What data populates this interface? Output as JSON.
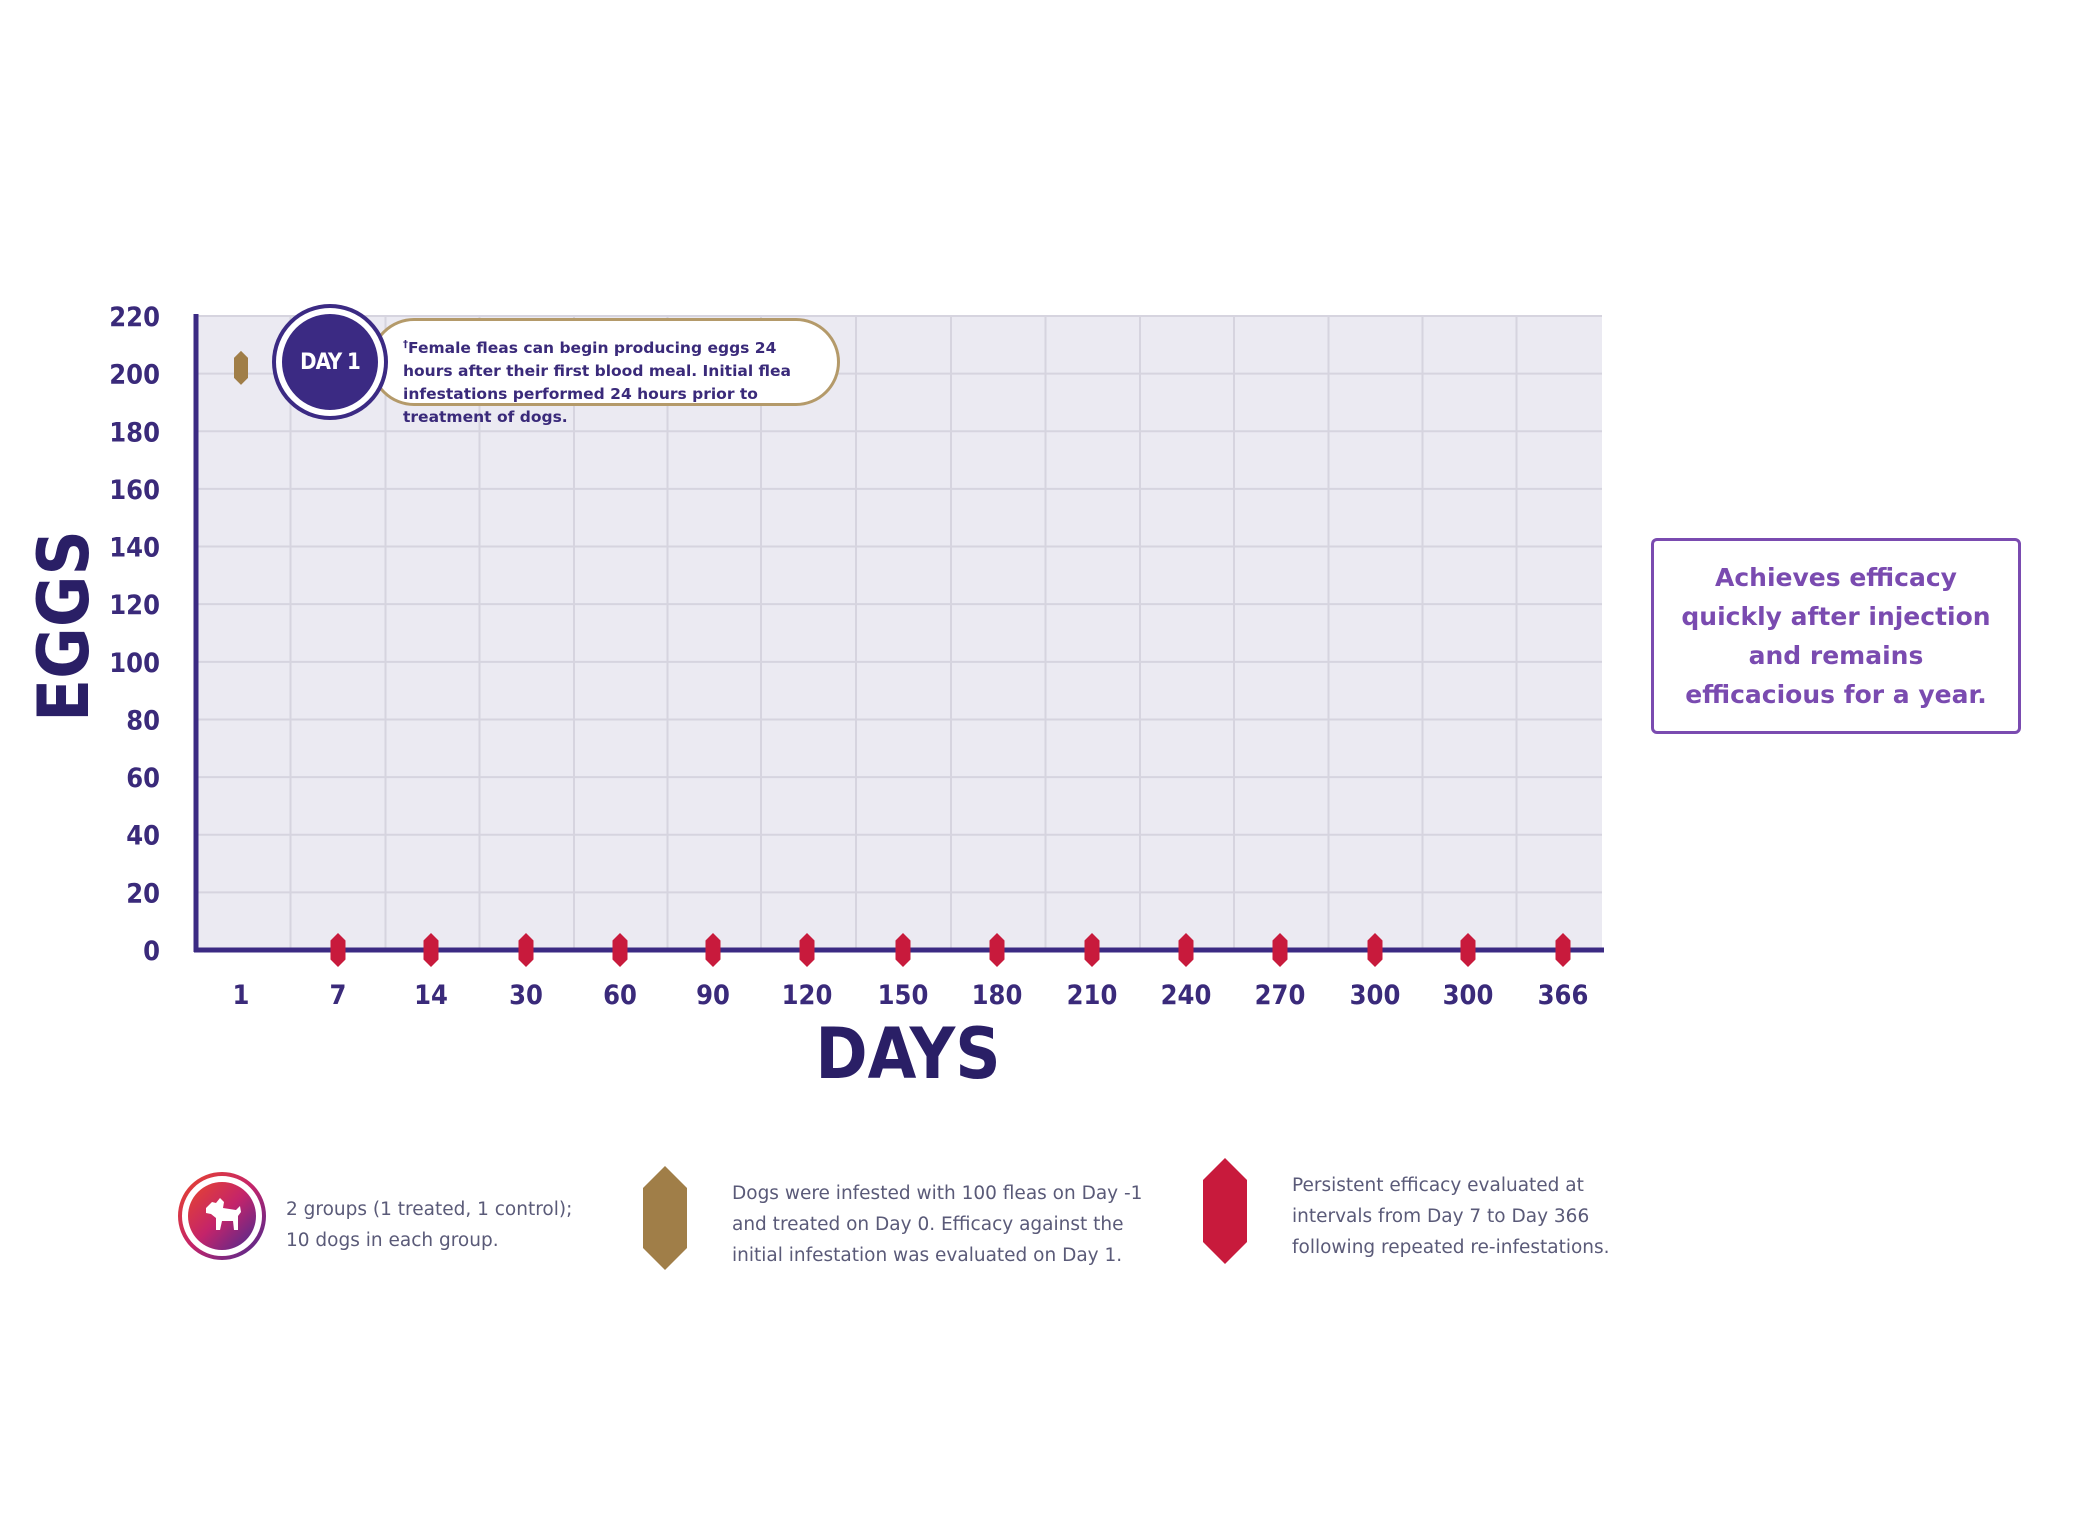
{
  "chart_data": {
    "type": "scatter",
    "xlabel": "DAYS",
    "ylabel": "EGGS",
    "categories": [
      "1",
      "7",
      "14",
      "30",
      "60",
      "90",
      "120",
      "150",
      "180",
      "210",
      "240",
      "270",
      "300",
      "300",
      "366"
    ],
    "yticks": [
      0,
      20,
      40,
      60,
      80,
      100,
      120,
      140,
      160,
      180,
      200,
      220
    ],
    "ylim": [
      0,
      220
    ],
    "grid": true,
    "series": [
      {
        "marker": "brown-hexagon",
        "color": "#a07e48",
        "points": [
          {
            "x": "1",
            "y": 202
          }
        ]
      },
      {
        "marker": "red-hexagon",
        "color": "#c81a3c",
        "points": [
          {
            "x": "7",
            "y": 0
          },
          {
            "x": "14",
            "y": 0
          },
          {
            "x": "30",
            "y": 0
          },
          {
            "x": "60",
            "y": 0
          },
          {
            "x": "90",
            "y": 0
          },
          {
            "x": "120",
            "y": 0
          },
          {
            "x": "150",
            "y": 0
          },
          {
            "x": "180",
            "y": 0
          },
          {
            "x": "210",
            "y": 0
          },
          {
            "x": "240",
            "y": 0
          },
          {
            "x": "270",
            "y": 0
          },
          {
            "x": "300",
            "y": 0
          },
          {
            "x": "300",
            "y": 0
          },
          {
            "x": "366",
            "y": 0
          }
        ]
      }
    ],
    "annotations": {
      "day_badge": "DAY 1",
      "callout_superscript": "†",
      "callout_text": "Female fleas can begin producing eggs 24 hours after their first blood meal. Initial flea infestations performed 24 hours prior to treatment of dogs."
    }
  },
  "side_note": "Achieves efficacy quickly after injection and remains efficacious for a year.",
  "legend": [
    {
      "icon": "dog-icon",
      "text": "2 groups (1 treated, 1 control); 10 dogs in each group."
    },
    {
      "icon": "brown-hexagon-icon",
      "text": "Dogs were infested with 100 fleas on Day -1 and treated on Day 0. Efficacy against the initial infestation was evaluated on Day 1."
    },
    {
      "icon": "red-hexagon-icon",
      "text": "Persistent efficacy evaluated at intervals from Day 7 to Day 366 following repeated re-infestations."
    }
  ],
  "colors": {
    "axis": "#3b2a83",
    "plot_bg": "#ebeaf2",
    "grid": "#d6d4df",
    "accent": "#7a4bb0"
  }
}
